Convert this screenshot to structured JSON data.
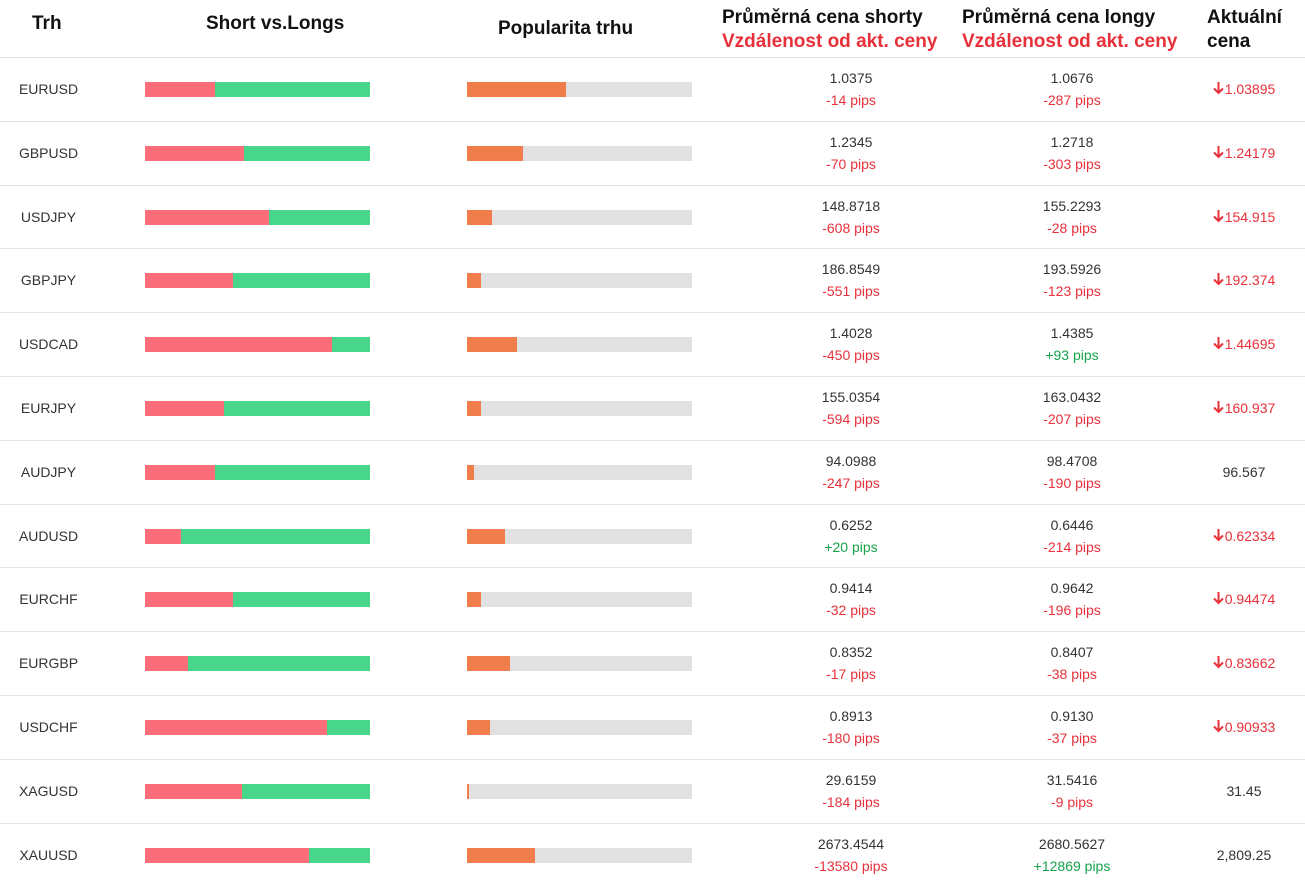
{
  "headers": {
    "market": "Trh",
    "short_vs_longs": "Short vs.Longs",
    "popularity": "Popularita trhu",
    "avg_short": "Průměrná cena shorty",
    "avg_long": "Průměrná cena longy",
    "distance": "Vzdálenost od akt. ceny",
    "current_line1": "Aktuální",
    "current_line2": "cena"
  },
  "colors": {
    "short": "#fc6d7a",
    "long": "#48d68b",
    "popularity": "#f07d4b",
    "track": "#e1e1e1",
    "negative": "#e8303a",
    "positive": "#16a34a"
  },
  "icons": {
    "down_arrow": "down-arrow-icon"
  },
  "rows": [
    {
      "market": "EURUSD",
      "short_pct": 31,
      "popularity_pct": 44,
      "avg_short": "1.0375",
      "short_pips": "-14 pips",
      "short_pips_sign": "neg",
      "avg_long": "1.0676",
      "long_pips": "-287 pips",
      "long_pips_sign": "neg",
      "current": "1.03895",
      "trend": "down"
    },
    {
      "market": "GBPUSD",
      "short_pct": 44,
      "popularity_pct": 25,
      "avg_short": "1.2345",
      "short_pips": "-70 pips",
      "short_pips_sign": "neg",
      "avg_long": "1.2718",
      "long_pips": "-303 pips",
      "long_pips_sign": "neg",
      "current": "1.24179",
      "trend": "down"
    },
    {
      "market": "USDJPY",
      "short_pct": 55,
      "popularity_pct": 11,
      "avg_short": "148.8718",
      "short_pips": "-608 pips",
      "short_pips_sign": "neg",
      "avg_long": "155.2293",
      "long_pips": "-28 pips",
      "long_pips_sign": "neg",
      "current": "154.915",
      "trend": "down"
    },
    {
      "market": "GBPJPY",
      "short_pct": 39,
      "popularity_pct": 6,
      "avg_short": "186.8549",
      "short_pips": "-551 pips",
      "short_pips_sign": "neg",
      "avg_long": "193.5926",
      "long_pips": "-123 pips",
      "long_pips_sign": "neg",
      "current": "192.374",
      "trend": "down"
    },
    {
      "market": "USDCAD",
      "short_pct": 83,
      "popularity_pct": 22,
      "avg_short": "1.4028",
      "short_pips": "-450 pips",
      "short_pips_sign": "neg",
      "avg_long": "1.4385",
      "long_pips": "+93 pips",
      "long_pips_sign": "pos",
      "current": "1.44695",
      "trend": "down"
    },
    {
      "market": "EURJPY",
      "short_pct": 35,
      "popularity_pct": 6,
      "avg_short": "155.0354",
      "short_pips": "-594 pips",
      "short_pips_sign": "neg",
      "avg_long": "163.0432",
      "long_pips": "-207 pips",
      "long_pips_sign": "neg",
      "current": "160.937",
      "trend": "down"
    },
    {
      "market": "AUDJPY",
      "short_pct": 31,
      "popularity_pct": 3,
      "avg_short": "94.0988",
      "short_pips": "-247 pips",
      "short_pips_sign": "neg",
      "avg_long": "98.4708",
      "long_pips": "-190 pips",
      "long_pips_sign": "neg",
      "current": "96.567",
      "trend": "none"
    },
    {
      "market": "AUDUSD",
      "short_pct": 16,
      "popularity_pct": 17,
      "avg_short": "0.6252",
      "short_pips": "+20 pips",
      "short_pips_sign": "pos",
      "avg_long": "0.6446",
      "long_pips": "-214 pips",
      "long_pips_sign": "neg",
      "current": "0.62334",
      "trend": "down"
    },
    {
      "market": "EURCHF",
      "short_pct": 39,
      "popularity_pct": 6,
      "avg_short": "0.9414",
      "short_pips": "-32 pips",
      "short_pips_sign": "neg",
      "avg_long": "0.9642",
      "long_pips": "-196 pips",
      "long_pips_sign": "neg",
      "current": "0.94474",
      "trend": "down"
    },
    {
      "market": "EURGBP",
      "short_pct": 19,
      "popularity_pct": 19,
      "avg_short": "0.8352",
      "short_pips": "-17 pips",
      "short_pips_sign": "neg",
      "avg_long": "0.8407",
      "long_pips": "-38 pips",
      "long_pips_sign": "neg",
      "current": "0.83662",
      "trend": "down"
    },
    {
      "market": "USDCHF",
      "short_pct": 81,
      "popularity_pct": 10,
      "avg_short": "0.8913",
      "short_pips": "-180 pips",
      "short_pips_sign": "neg",
      "avg_long": "0.9130",
      "long_pips": "-37 pips",
      "long_pips_sign": "neg",
      "current": "0.90933",
      "trend": "down"
    },
    {
      "market": "XAGUSD",
      "short_pct": 43,
      "popularity_pct": 1,
      "avg_short": "29.6159",
      "short_pips": "-184 pips",
      "short_pips_sign": "neg",
      "avg_long": "31.5416",
      "long_pips": "-9 pips",
      "long_pips_sign": "neg",
      "current": "31.45",
      "trend": "none"
    },
    {
      "market": "XAUUSD",
      "short_pct": 73,
      "popularity_pct": 30,
      "avg_short": "2673.4544",
      "short_pips": "-13580 pips",
      "short_pips_sign": "neg",
      "avg_long": "2680.5627",
      "long_pips": "+12869 pips",
      "long_pips_sign": "pos",
      "current": "2,809.25",
      "trend": "none"
    }
  ]
}
